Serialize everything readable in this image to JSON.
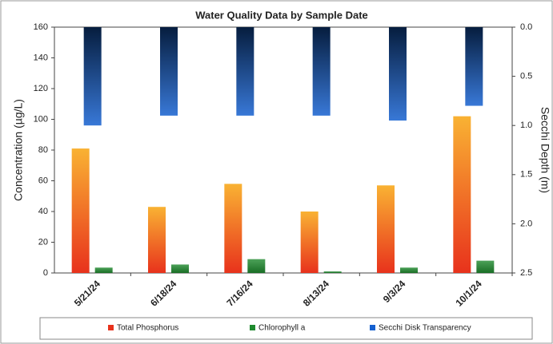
{
  "chart_data": {
    "type": "bar",
    "title": "Water Quality Data by Sample Date",
    "y_label": "Concentration (µg/L)",
    "y2_label": "Secchi Depth (m)",
    "categories": [
      "5/21/24",
      "6/18/24",
      "7/16/24",
      "8/13/24",
      "9/3/24",
      "10/1/24"
    ],
    "series": [
      {
        "name": "Total Phosphorus",
        "color": "#e8321c",
        "values": [
          81,
          43,
          58,
          40,
          57,
          102
        ]
      },
      {
        "name": "Chlorophyll a",
        "color": "#1f8a2e",
        "values": [
          3.5,
          5.5,
          9,
          1,
          3.5,
          8
        ]
      },
      {
        "name": "Secchi Disk Transparency",
        "color": "#1560d0",
        "axis": "y2",
        "values": [
          1.0,
          0.9,
          0.9,
          0.9,
          0.95,
          0.8
        ]
      }
    ],
    "ylim": [
      0,
      160
    ],
    "yticks": [
      0,
      20,
      40,
      60,
      80,
      100,
      120,
      140,
      160
    ],
    "y2lim": [
      0,
      2.5
    ],
    "y2_inverted": true,
    "y2ticks": [
      {
        "value": 0,
        "label": "0.0"
      },
      0.5,
      {
        "value": 1,
        "label": "1.0"
      },
      1.5,
      {
        "value": 2,
        "label": "2.0"
      },
      2.5
    ],
    "grid": false,
    "legend": "bottom"
  }
}
